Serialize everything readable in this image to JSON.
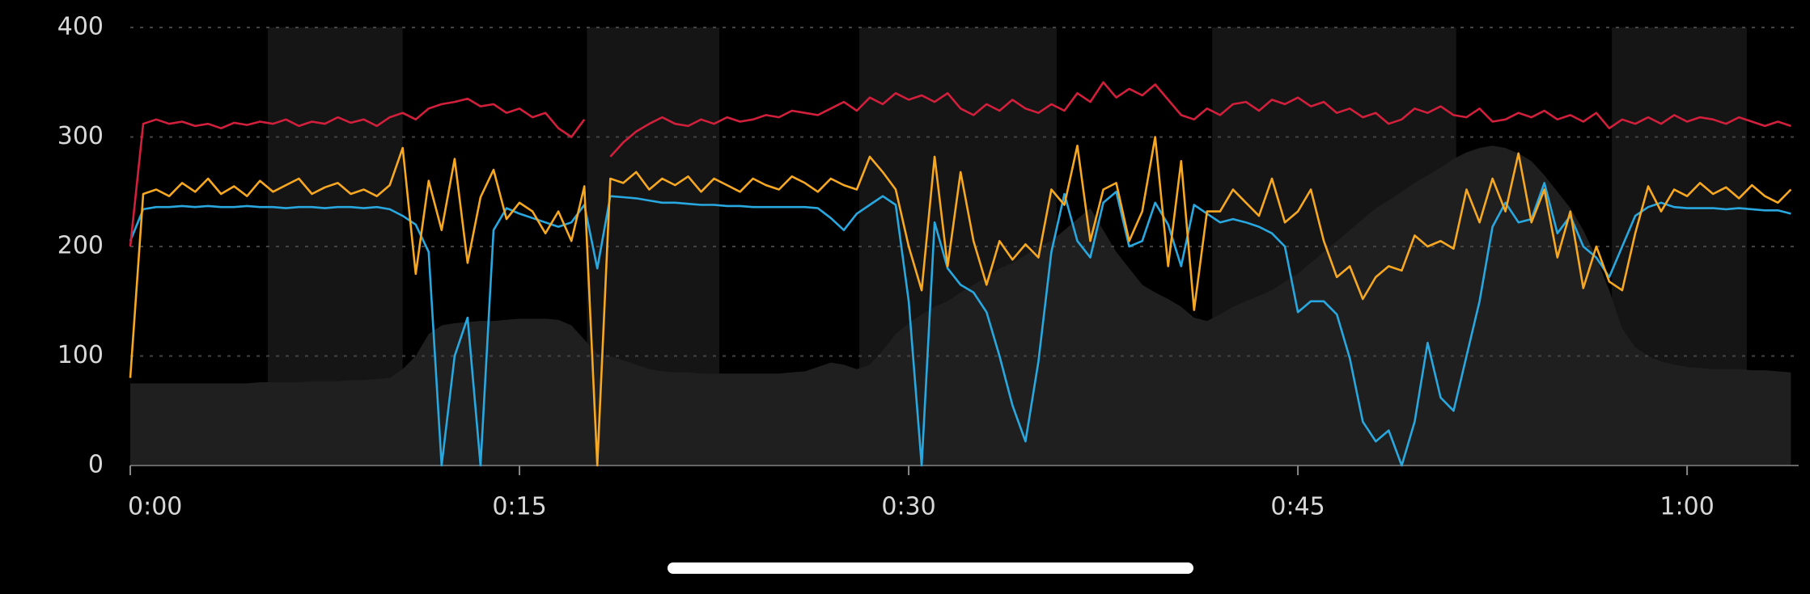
{
  "chart_data": {
    "type": "line",
    "x": [
      0,
      0.5,
      1,
      1.5,
      2,
      2.5,
      3,
      3.5,
      4,
      4.5,
      5,
      5.5,
      6,
      6.5,
      7,
      7.5,
      8,
      8.5,
      9,
      9.5,
      10,
      10.5,
      11,
      11.5,
      12,
      12.5,
      13,
      13.5,
      14,
      14.5,
      15,
      15.5,
      16,
      16.5,
      17,
      17.5,
      18,
      18.5,
      19,
      19.5,
      20,
      20.5,
      21,
      21.5,
      22,
      22.5,
      23,
      23.5,
      24,
      24.5,
      25,
      25.5,
      26,
      26.5,
      27,
      27.5,
      28,
      28.5,
      29,
      29.5,
      30,
      30.5,
      31,
      31.5,
      32,
      32.5,
      33,
      33.5,
      34,
      34.5,
      35,
      35.5,
      36,
      36.5,
      37,
      37.5,
      38,
      38.5,
      39,
      39.5,
      40,
      40.5,
      41,
      41.5,
      42,
      42.5,
      43,
      43.5,
      44,
      44.5,
      45,
      45.5,
      46,
      46.5,
      47,
      47.5,
      48,
      48.5,
      49,
      49.5,
      50,
      50.5,
      51,
      51.5,
      52,
      52.5,
      53,
      53.5,
      54,
      54.5,
      55,
      55.5,
      56,
      56.5,
      57,
      57.5,
      58,
      58.5,
      59,
      59.5,
      60,
      60.5,
      61,
      61.5,
      62,
      62.5,
      63,
      63.5,
      64
    ],
    "series": [
      {
        "type": "area",
        "color": "#1f1f1f",
        "values": [
          75,
          75,
          75,
          75,
          75,
          75,
          75,
          75,
          75,
          75,
          76,
          76,
          76,
          76,
          77,
          77,
          77,
          78,
          78,
          79,
          80,
          88,
          100,
          120,
          128,
          130,
          131,
          132,
          132,
          133,
          134,
          134,
          134,
          133,
          128,
          115,
          102,
          100,
          96,
          92,
          88,
          86,
          85,
          85,
          84,
          84,
          84,
          84,
          84,
          84,
          84,
          85,
          86,
          90,
          94,
          92,
          88,
          92,
          105,
          120,
          130,
          138,
          145,
          150,
          158,
          165,
          172,
          180,
          185,
          192,
          200,
          205,
          215,
          225,
          235,
          215,
          195,
          180,
          165,
          158,
          152,
          145,
          135,
          132,
          138,
          145,
          150,
          155,
          160,
          168,
          175,
          185,
          195,
          205,
          215,
          225,
          235,
          242,
          250,
          258,
          265,
          272,
          280,
          286,
          290,
          292,
          290,
          285,
          278,
          265,
          250,
          235,
          215,
          190,
          160,
          125,
          108,
          100,
          95,
          92,
          90,
          89,
          88,
          88,
          88,
          87,
          87,
          86,
          85
        ]
      },
      {
        "type": "line",
        "color": "#29a8e0",
        "values": [
          205,
          234,
          236,
          236,
          237,
          236,
          237,
          236,
          236,
          237,
          236,
          236,
          235,
          236,
          236,
          235,
          236,
          236,
          235,
          236,
          234,
          228,
          220,
          195,
          0,
          100,
          135,
          0,
          215,
          235,
          230,
          226,
          222,
          218,
          222,
          238,
          180,
          246,
          245,
          244,
          242,
          240,
          240,
          239,
          238,
          238,
          237,
          237,
          236,
          236,
          236,
          236,
          236,
          235,
          226,
          215,
          230,
          238,
          246,
          238,
          150,
          0,
          222,
          180,
          165,
          158,
          140,
          100,
          55,
          22,
          95,
          195,
          248,
          205,
          190,
          240,
          250,
          200,
          205,
          240,
          220,
          182,
          238,
          230,
          222,
          225,
          222,
          218,
          212,
          200,
          140,
          150,
          150,
          138,
          98,
          40,
          22,
          32,
          0,
          40,
          112,
          62,
          50,
          100,
          150,
          218,
          240,
          222,
          225,
          258,
          212,
          228,
          200,
          190,
          172,
          200,
          228,
          236,
          240,
          236,
          235,
          235,
          235,
          234,
          235,
          234,
          233,
          233,
          230
        ]
      },
      {
        "type": "line",
        "color": "#f7a823",
        "values": [
          80,
          248,
          252,
          246,
          258,
          250,
          262,
          248,
          255,
          246,
          260,
          250,
          256,
          262,
          248,
          254,
          258,
          248,
          252,
          246,
          256,
          290,
          175,
          260,
          215,
          280,
          185,
          245,
          270,
          225,
          240,
          232,
          212,
          232,
          205,
          255,
          0,
          262,
          258,
          268,
          252,
          262,
          256,
          264,
          250,
          262,
          256,
          250,
          262,
          256,
          252,
          264,
          258,
          250,
          262,
          256,
          252,
          282,
          268,
          252,
          200,
          160,
          282,
          182,
          268,
          205,
          165,
          205,
          188,
          202,
          190,
          252,
          238,
          292,
          205,
          252,
          258,
          205,
          232,
          300,
          182,
          278,
          142,
          232,
          232,
          252,
          240,
          228,
          262,
          222,
          232,
          252,
          205,
          172,
          182,
          152,
          172,
          182,
          178,
          210,
          200,
          205,
          198,
          252,
          222,
          262,
          232,
          285,
          222,
          252,
          190,
          232,
          162,
          200,
          168,
          160,
          212,
          255,
          232,
          252,
          246,
          258,
          248,
          254,
          244,
          256,
          246,
          240,
          252
        ]
      },
      {
        "type": "line",
        "color": "#d21f3c",
        "values": [
          200,
          312,
          316,
          312,
          314,
          310,
          312,
          308,
          313,
          311,
          314,
          312,
          316,
          310,
          314,
          312,
          318,
          313,
          316,
          310,
          318,
          322,
          316,
          326,
          330,
          332,
          335,
          328,
          330,
          322,
          326,
          318,
          322,
          308,
          300,
          316,
          null,
          282,
          295,
          305,
          312,
          318,
          312,
          310,
          316,
          312,
          318,
          314,
          316,
          320,
          318,
          324,
          322,
          320,
          326,
          332,
          324,
          336,
          330,
          340,
          334,
          338,
          332,
          340,
          326,
          320,
          330,
          324,
          334,
          326,
          322,
          330,
          324,
          340,
          332,
          350,
          336,
          344,
          338,
          348,
          334,
          320,
          316,
          326,
          320,
          330,
          332,
          324,
          334,
          330,
          336,
          328,
          332,
          322,
          326,
          318,
          322,
          312,
          316,
          326,
          322,
          328,
          320,
          318,
          326,
          314,
          316,
          322,
          318,
          324,
          316,
          320,
          314,
          322,
          308,
          316,
          312,
          318,
          312,
          320,
          314,
          318,
          316,
          312,
          318,
          314,
          310,
          314,
          310
        ]
      }
    ],
    "bands": [
      [
        5.3,
        10.5
      ],
      [
        17.6,
        22.7
      ],
      [
        28.1,
        35.7
      ],
      [
        41.7,
        51.1
      ],
      [
        57.1,
        62.3
      ]
    ],
    "xlim": [
      0,
      64.3
    ],
    "ylim": [
      0,
      400
    ],
    "xticks": [
      {
        "value": 0,
        "label": "0:00"
      },
      {
        "value": 15,
        "label": "0:15"
      },
      {
        "value": 30,
        "label": "0:30"
      },
      {
        "value": 45,
        "label": "0:45"
      },
      {
        "value": 60,
        "label": "1:00"
      }
    ],
    "yticks": [
      0,
      100,
      200,
      300,
      400
    ],
    "grid": true
  }
}
